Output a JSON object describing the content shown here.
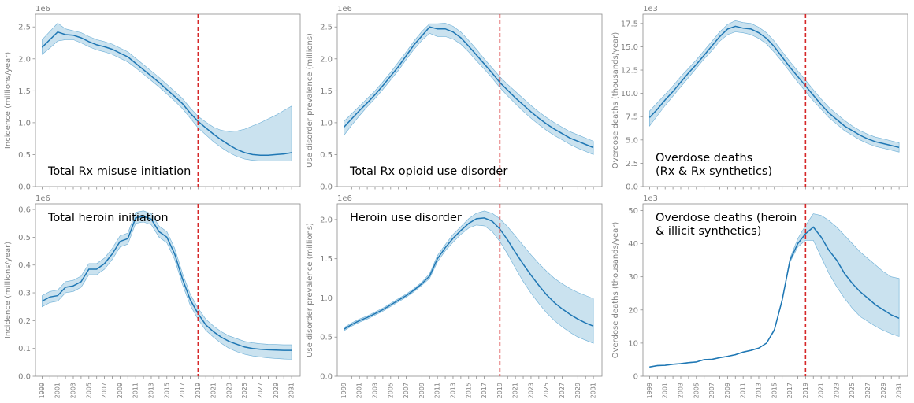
{
  "colors": {
    "line": "#1f77b4",
    "band": "#9ecae1",
    "band_edge": "#6baed6",
    "marker": "#d62728",
    "frame": "#8c8c8c",
    "tick_text": "#7f7f7f"
  },
  "marker_year": 2019,
  "x_tick_labels": [
    "1999",
    "2001",
    "2003",
    "2005",
    "2007",
    "2009",
    "2011",
    "2013",
    "2015",
    "2017",
    "2019",
    "2021",
    "2023",
    "2025",
    "2027",
    "2029",
    "2031"
  ],
  "chart_data": [
    {
      "type": "line",
      "title": "Total Rx misuse initiation",
      "ylabel": "Incidence (millions/year)",
      "offset_text": "1e6",
      "ylim": [
        0,
        2.7
      ],
      "yticks": [
        0.0,
        0.5,
        1.0,
        1.5,
        2.0,
        2.5
      ],
      "ytick_labels": [
        "0.0",
        "0.5",
        "1.0",
        "1.5",
        "2.0",
        "2.5"
      ],
      "x": [
        1999,
        2000,
        2001,
        2002,
        2003,
        2004,
        2005,
        2006,
        2007,
        2008,
        2009,
        2010,
        2011,
        2012,
        2013,
        2014,
        2015,
        2016,
        2017,
        2018,
        2019,
        2020,
        2021,
        2022,
        2023,
        2024,
        2025,
        2026,
        2027,
        2028,
        2029,
        2030,
        2031
      ],
      "y": [
        2.18,
        2.3,
        2.42,
        2.38,
        2.37,
        2.33,
        2.27,
        2.22,
        2.19,
        2.15,
        2.09,
        2.03,
        1.93,
        1.83,
        1.73,
        1.63,
        1.52,
        1.41,
        1.3,
        1.15,
        1.02,
        0.92,
        0.82,
        0.73,
        0.65,
        0.58,
        0.53,
        0.5,
        0.49,
        0.49,
        0.5,
        0.51,
        0.53
      ],
      "lower": [
        2.07,
        2.17,
        2.28,
        2.3,
        2.3,
        2.25,
        2.19,
        2.14,
        2.11,
        2.07,
        2.01,
        1.95,
        1.86,
        1.76,
        1.66,
        1.56,
        1.45,
        1.34,
        1.22,
        1.07,
        0.92,
        0.81,
        0.7,
        0.61,
        0.53,
        0.47,
        0.43,
        0.41,
        0.4,
        0.4,
        0.4,
        0.4,
        0.4
      ],
      "upper": [
        2.3,
        2.43,
        2.56,
        2.47,
        2.44,
        2.41,
        2.35,
        2.3,
        2.27,
        2.23,
        2.17,
        2.11,
        2.01,
        1.91,
        1.81,
        1.71,
        1.6,
        1.49,
        1.38,
        1.23,
        1.1,
        1.01,
        0.93,
        0.88,
        0.86,
        0.87,
        0.9,
        0.95,
        1.0,
        1.06,
        1.12,
        1.19,
        1.26
      ]
    },
    {
      "type": "line",
      "title": "Total Rx opioid use disorder",
      "ylabel": "Use disorder prevalence (millions)",
      "offset_text": "1e6",
      "ylim": [
        0,
        2.7
      ],
      "yticks": [
        0.0,
        0.5,
        1.0,
        1.5,
        2.0,
        2.5
      ],
      "ytick_labels": [
        "0.0",
        "0.5",
        "1.0",
        "1.5",
        "2.0",
        "2.5"
      ],
      "x": [
        1999,
        2000,
        2001,
        2002,
        2003,
        2004,
        2005,
        2006,
        2007,
        2008,
        2009,
        2010,
        2011,
        2012,
        2013,
        2014,
        2015,
        2016,
        2017,
        2018,
        2019,
        2020,
        2021,
        2022,
        2023,
        2024,
        2025,
        2026,
        2027,
        2028,
        2029,
        2030,
        2031
      ],
      "y": [
        0.93,
        1.06,
        1.19,
        1.31,
        1.44,
        1.58,
        1.73,
        1.88,
        2.05,
        2.22,
        2.36,
        2.5,
        2.47,
        2.47,
        2.42,
        2.33,
        2.2,
        2.06,
        1.92,
        1.78,
        1.63,
        1.51,
        1.39,
        1.28,
        1.17,
        1.07,
        0.98,
        0.9,
        0.83,
        0.76,
        0.71,
        0.66,
        0.61
      ],
      "lower": [
        0.8,
        0.96,
        1.11,
        1.25,
        1.38,
        1.52,
        1.67,
        1.82,
        1.99,
        2.15,
        2.29,
        2.4,
        2.35,
        2.35,
        2.31,
        2.23,
        2.11,
        1.97,
        1.84,
        1.7,
        1.55,
        1.42,
        1.3,
        1.18,
        1.07,
        0.97,
        0.88,
        0.8,
        0.73,
        0.66,
        0.6,
        0.55,
        0.5
      ],
      "upper": [
        1.02,
        1.14,
        1.26,
        1.38,
        1.5,
        1.64,
        1.79,
        1.95,
        2.11,
        2.28,
        2.43,
        2.55,
        2.55,
        2.56,
        2.51,
        2.42,
        2.29,
        2.15,
        2.0,
        1.86,
        1.72,
        1.6,
        1.49,
        1.38,
        1.27,
        1.17,
        1.08,
        1.0,
        0.93,
        0.86,
        0.81,
        0.76,
        0.71
      ]
    },
    {
      "type": "line",
      "title": "Overdose deaths\n(Rx & Rx synthetics)",
      "ylabel": "Overdose deaths (thousands/year)",
      "offset_text": "1e3",
      "ylim": [
        0,
        18.5
      ],
      "yticks": [
        0.0,
        2.5,
        5.0,
        7.5,
        10.0,
        12.5,
        15.0,
        17.5
      ],
      "ytick_labels": [
        "0.0",
        "2.5",
        "5.0",
        "7.5",
        "10.0",
        "12.5",
        "15.0",
        "17.5"
      ],
      "x": [
        1999,
        2000,
        2001,
        2002,
        2003,
        2004,
        2005,
        2006,
        2007,
        2008,
        2009,
        2010,
        2011,
        2012,
        2013,
        2014,
        2015,
        2016,
        2017,
        2018,
        2019,
        2020,
        2021,
        2022,
        2023,
        2024,
        2025,
        2026,
        2027,
        2028,
        2029,
        2030,
        2031
      ],
      "y": [
        7.4,
        8.3,
        9.3,
        10.2,
        11.2,
        12.2,
        13.1,
        14.1,
        15.1,
        16.1,
        16.9,
        17.2,
        17.0,
        16.9,
        16.5,
        15.9,
        15.0,
        13.9,
        12.8,
        11.8,
        10.8,
        9.8,
        8.8,
        7.9,
        7.2,
        6.5,
        6.0,
        5.5,
        5.1,
        4.8,
        4.6,
        4.4,
        4.2
      ],
      "lower": [
        6.5,
        7.6,
        8.7,
        9.7,
        10.7,
        11.7,
        12.7,
        13.7,
        14.6,
        15.6,
        16.3,
        16.6,
        16.5,
        16.3,
        15.9,
        15.3,
        14.4,
        13.4,
        12.3,
        11.2,
        10.2,
        9.2,
        8.3,
        7.4,
        6.7,
        6.0,
        5.5,
        5.0,
        4.6,
        4.3,
        4.1,
        3.9,
        3.7
      ],
      "upper": [
        8.1,
        9.0,
        9.9,
        10.8,
        11.8,
        12.7,
        13.6,
        14.6,
        15.6,
        16.6,
        17.4,
        17.8,
        17.6,
        17.5,
        17.1,
        16.5,
        15.6,
        14.5,
        13.4,
        12.4,
        11.4,
        10.4,
        9.4,
        8.5,
        7.8,
        7.1,
        6.5,
        6.0,
        5.6,
        5.3,
        5.1,
        4.9,
        4.7
      ]
    },
    {
      "type": "line",
      "title": "Total heroin initiation",
      "ylabel": "Incidence (millions/year)",
      "offset_text": "1e6",
      "ylim": [
        0,
        0.62
      ],
      "yticks": [
        0.0,
        0.1,
        0.2,
        0.3,
        0.4,
        0.5,
        0.6
      ],
      "ytick_labels": [
        "0.0",
        "0.1",
        "0.2",
        "0.3",
        "0.4",
        "0.5",
        "0.6"
      ],
      "x": [
        1999,
        2000,
        2001,
        2002,
        2003,
        2004,
        2005,
        2006,
        2007,
        2008,
        2009,
        2010,
        2011,
        2012,
        2013,
        2014,
        2015,
        2016,
        2017,
        2018,
        2019,
        2020,
        2021,
        2022,
        2023,
        2024,
        2025,
        2026,
        2027,
        2028,
        2029,
        2030,
        2031
      ],
      "y": [
        0.27,
        0.285,
        0.29,
        0.32,
        0.325,
        0.34,
        0.385,
        0.385,
        0.405,
        0.44,
        0.485,
        0.495,
        0.57,
        0.575,
        0.565,
        0.52,
        0.5,
        0.44,
        0.35,
        0.275,
        0.225,
        0.185,
        0.16,
        0.14,
        0.125,
        0.115,
        0.105,
        0.1,
        0.097,
        0.095,
        0.094,
        0.093,
        0.093
      ],
      "lower": [
        0.25,
        0.265,
        0.27,
        0.3,
        0.305,
        0.32,
        0.365,
        0.365,
        0.385,
        0.42,
        0.465,
        0.475,
        0.55,
        0.555,
        0.545,
        0.5,
        0.48,
        0.42,
        0.33,
        0.255,
        0.205,
        0.165,
        0.14,
        0.118,
        0.1,
        0.088,
        0.079,
        0.073,
        0.069,
        0.066,
        0.064,
        0.062,
        0.061
      ],
      "upper": [
        0.29,
        0.305,
        0.31,
        0.34,
        0.345,
        0.36,
        0.405,
        0.405,
        0.425,
        0.46,
        0.505,
        0.515,
        0.59,
        0.595,
        0.585,
        0.54,
        0.52,
        0.46,
        0.37,
        0.295,
        0.245,
        0.205,
        0.18,
        0.16,
        0.145,
        0.135,
        0.125,
        0.12,
        0.117,
        0.115,
        0.114,
        0.113,
        0.113
      ]
    },
    {
      "type": "line",
      "title": "Heroin use disorder",
      "ylabel": "Use disorder prevalence (millions)",
      "offset_text": "1e6",
      "ylim": [
        0,
        2.2
      ],
      "yticks": [
        0.0,
        0.5,
        1.0,
        1.5,
        2.0
      ],
      "ytick_labels": [
        "0.0",
        "0.5",
        "1.0",
        "1.5",
        "2.0"
      ],
      "x": [
        1999,
        2000,
        2001,
        2002,
        2003,
        2004,
        2005,
        2006,
        2007,
        2008,
        2009,
        2010,
        2011,
        2012,
        2013,
        2014,
        2015,
        2016,
        2017,
        2018,
        2019,
        2020,
        2021,
        2022,
        2023,
        2024,
        2025,
        2026,
        2027,
        2028,
        2029,
        2030,
        2031
      ],
      "y": [
        0.6,
        0.66,
        0.71,
        0.75,
        0.8,
        0.85,
        0.91,
        0.97,
        1.03,
        1.1,
        1.18,
        1.28,
        1.5,
        1.64,
        1.76,
        1.86,
        1.95,
        2.01,
        2.02,
        1.98,
        1.88,
        1.74,
        1.58,
        1.43,
        1.29,
        1.16,
        1.04,
        0.94,
        0.86,
        0.79,
        0.73,
        0.68,
        0.64
      ],
      "lower": [
        0.58,
        0.64,
        0.69,
        0.73,
        0.78,
        0.83,
        0.89,
        0.95,
        1.01,
        1.08,
        1.16,
        1.25,
        1.46,
        1.6,
        1.71,
        1.81,
        1.89,
        1.93,
        1.92,
        1.85,
        1.72,
        1.56,
        1.38,
        1.21,
        1.06,
        0.93,
        0.81,
        0.71,
        0.63,
        0.56,
        0.5,
        0.46,
        0.42
      ],
      "upper": [
        0.62,
        0.68,
        0.73,
        0.77,
        0.82,
        0.87,
        0.93,
        0.99,
        1.05,
        1.12,
        1.2,
        1.31,
        1.54,
        1.68,
        1.81,
        1.91,
        2.01,
        2.08,
        2.11,
        2.08,
        2.01,
        1.91,
        1.79,
        1.67,
        1.55,
        1.44,
        1.34,
        1.25,
        1.18,
        1.12,
        1.07,
        1.03,
        0.99
      ]
    },
    {
      "type": "line",
      "title": "Overdose deaths (heroin\n& illicit synthetics)",
      "ylabel": "Overdose deaths (thousands/year)",
      "offset_text": "1e3",
      "ylim": [
        0,
        52
      ],
      "yticks": [
        0,
        10,
        20,
        30,
        40,
        50
      ],
      "ytick_labels": [
        "0",
        "10",
        "20",
        "30",
        "40",
        "50"
      ],
      "x": [
        1999,
        2000,
        2001,
        2002,
        2003,
        2004,
        2005,
        2006,
        2007,
        2008,
        2009,
        2010,
        2011,
        2012,
        2013,
        2014,
        2015,
        2016,
        2017,
        2018,
        2019,
        2020,
        2021,
        2022,
        2023,
        2024,
        2025,
        2026,
        2027,
        2028,
        2029,
        2030,
        2031
      ],
      "y": [
        2.8,
        3.2,
        3.3,
        3.6,
        3.8,
        4.1,
        4.3,
        5.0,
        5.1,
        5.6,
        6.0,
        6.5,
        7.3,
        7.8,
        8.5,
        10.0,
        14.0,
        23.0,
        35.0,
        40.0,
        43.0,
        45.0,
        42.0,
        38.0,
        35.0,
        31.0,
        28.0,
        25.5,
        23.5,
        21.5,
        20.0,
        18.5,
        17.5
      ],
      "lower": [
        2.7,
        3.1,
        3.2,
        3.5,
        3.7,
        4.0,
        4.2,
        4.9,
        5.0,
        5.5,
        5.9,
        6.4,
        7.2,
        7.7,
        8.4,
        9.9,
        13.7,
        22.6,
        34.4,
        39.0,
        41.0,
        41.0,
        36.0,
        31.0,
        27.0,
        23.5,
        20.5,
        18.0,
        16.5,
        15.0,
        13.8,
        12.8,
        12.0
      ],
      "upper": [
        2.9,
        3.3,
        3.4,
        3.7,
        3.9,
        4.2,
        4.4,
        5.1,
        5.2,
        5.7,
        6.1,
        6.6,
        7.4,
        7.9,
        8.6,
        10.1,
        14.3,
        23.4,
        35.6,
        41.5,
        45.5,
        49.0,
        48.5,
        47.0,
        45.0,
        42.5,
        40.0,
        37.5,
        35.5,
        33.5,
        31.5,
        30.0,
        29.5
      ]
    }
  ]
}
